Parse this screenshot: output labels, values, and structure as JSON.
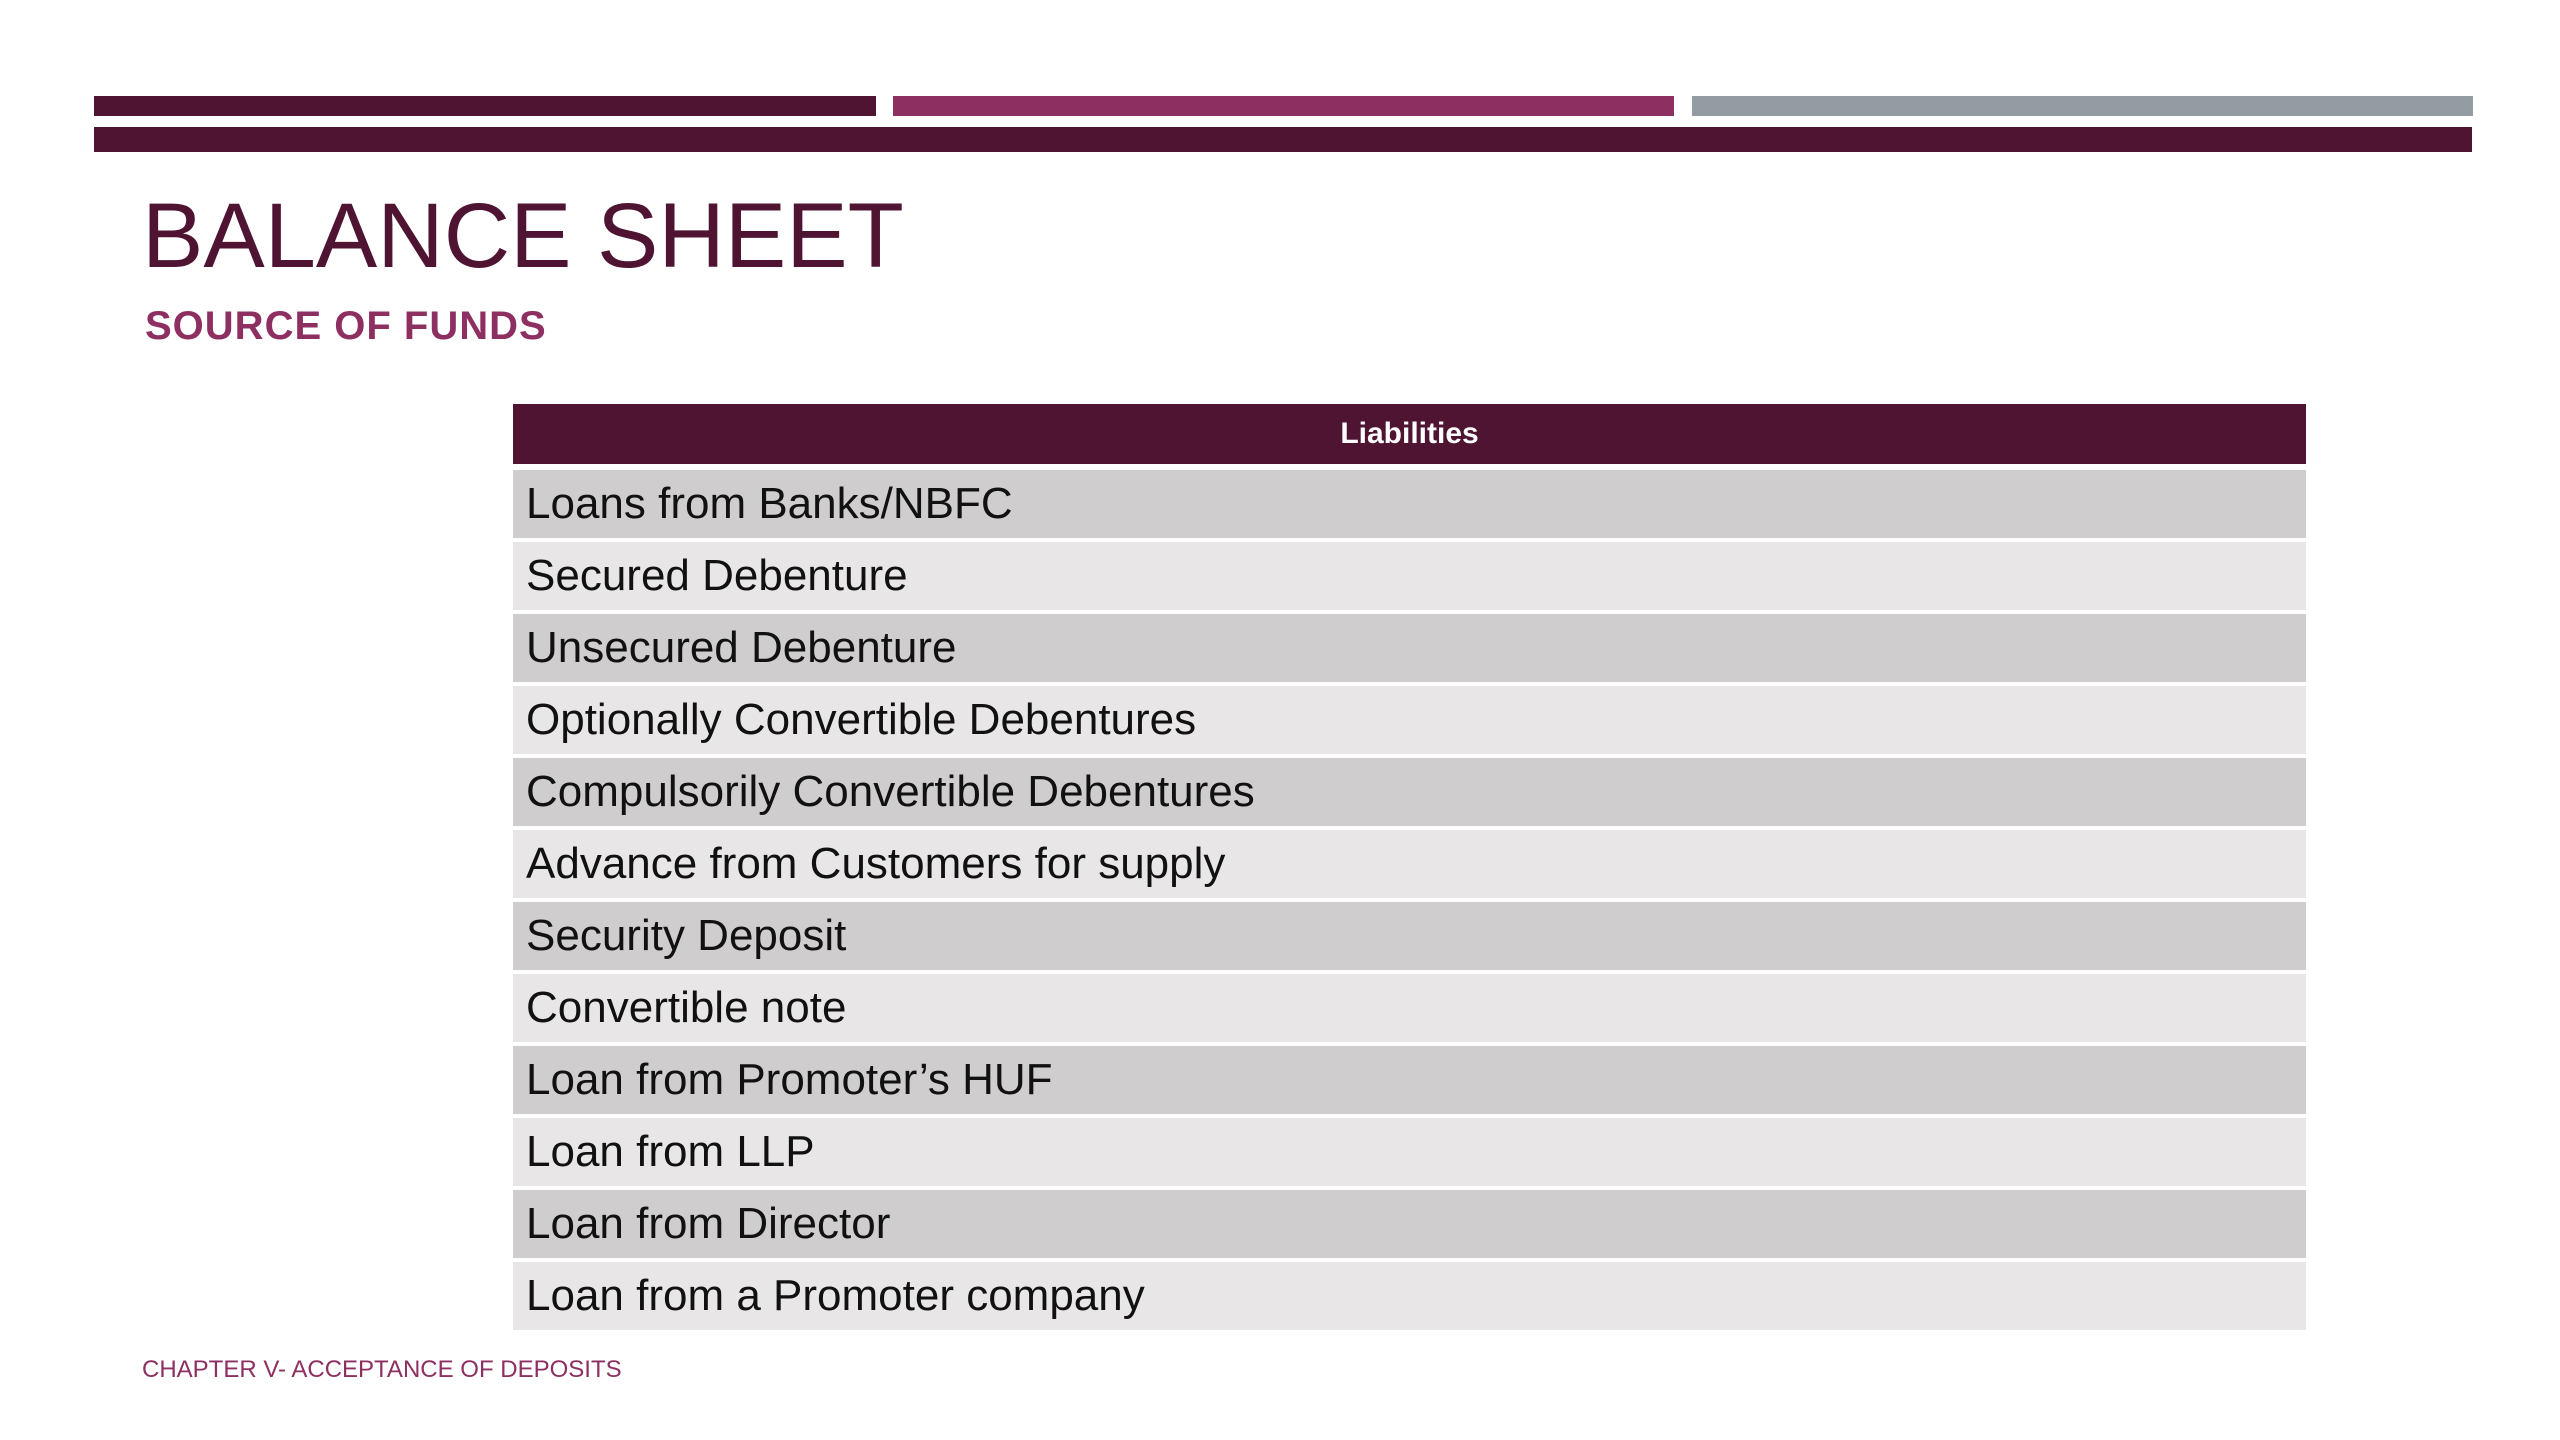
{
  "slide": {
    "title": "BALANCE SHEET",
    "subtitle": "SOURCE OF FUNDS",
    "footer": "CHAPTER V- ACCEPTANCE OF DEPOSITS",
    "colors": {
      "primary": "#4e1432",
      "accent": "#8e2f62",
      "gray": "#939ca1",
      "row_dark": "#d0cdcf",
      "row_light": "#e8e6e7"
    }
  },
  "table": {
    "header": "Liabilities",
    "rows": [
      "Loans from Banks/NBFC",
      "Secured Debenture",
      "Unsecured Debenture",
      "Optionally Convertible Debentures",
      "Compulsorily Convertible Debentures",
      "Advance from Customers for supply",
      "Security Deposit",
      "Convertible note",
      "Loan from Promoter’s HUF",
      "Loan from LLP",
      "Loan from Director",
      "Loan from a Promoter company"
    ]
  }
}
